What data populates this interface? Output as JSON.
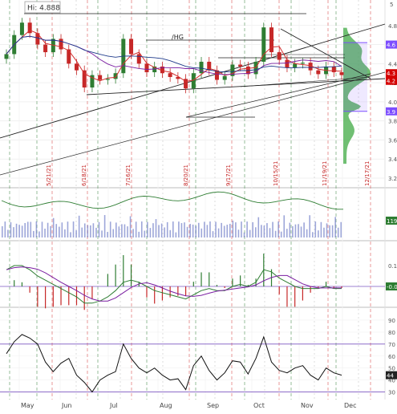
{
  "symbol_note": "/HG",
  "high_label": "Hi: 4.888",
  "colors": {
    "up": "#2e7d32",
    "down": "#c62828",
    "ma_red": "#d32f2f",
    "ma_purple": "#7b1fa2",
    "ma_blue": "#1e3a8a",
    "green_line": "#2e7d32",
    "volume_profile": "#4caf50",
    "volume_profile_highlight": "#7c4dff",
    "last_price_bg": "#d50000",
    "dashed_green": "#2e7d32",
    "dashed_red": "#d32f2f",
    "dashed_grey": "#9e9e9e",
    "hline_purple": "#7e57c2"
  },
  "price_axis": {
    "ticks": [
      "4.8",
      "4.6",
      "4.4",
      "4.2",
      "4.0",
      "3.8",
      "3.6",
      "3.4",
      "3.2"
    ],
    "top_label": "5",
    "badges": {
      "b1": "4.6",
      "b2": "4.3",
      "b3": "4.2",
      "b4": "3.9"
    }
  },
  "volume_axis": {
    "badge": "119"
  },
  "macd_axis": {
    "tick": "0.1",
    "badge": "-0.0"
  },
  "rsi_axis": {
    "ticks": [
      "90",
      "80",
      "70",
      "60",
      "50",
      "40",
      "30"
    ],
    "badge": "44",
    "levels": [
      30,
      70
    ]
  },
  "x_axis": {
    "months": [
      "May",
      "Jun",
      "Jul",
      "Aug",
      "Sep",
      "Oct",
      "Nov",
      "Dec"
    ]
  },
  "event_dates": [
    "5/21/21",
    "6/18/21",
    "7/16/21",
    "8/20/21",
    "9/17/21",
    "10/15/21",
    "11/19/21",
    "12/17/21"
  ],
  "chart_data": [
    {
      "type": "candlestick",
      "title": "",
      "ylim": [
        3.2,
        5.0
      ],
      "annotations": [
        "Hi: 4.888",
        "/HG"
      ],
      "last_price_labels": [
        4.3,
        4.2
      ],
      "close_series": [
        4.5,
        4.7,
        4.83,
        4.72,
        4.6,
        4.52,
        4.66,
        4.55,
        4.4,
        4.33,
        4.15,
        4.28,
        4.23,
        4.24,
        4.3,
        4.66,
        4.5,
        4.4,
        4.31,
        4.37,
        4.3,
        4.26,
        4.24,
        4.14,
        4.3,
        4.42,
        4.33,
        4.23,
        4.27,
        4.39,
        4.37,
        4.29,
        4.42,
        4.78,
        4.52,
        4.44,
        4.36,
        4.4,
        4.41,
        4.33,
        4.29,
        4.37,
        4.31,
        4.28
      ],
      "volume_profile_range": [
        3.35,
        4.78
      ]
    },
    {
      "type": "bar",
      "name": "volume",
      "last_value": 119
    },
    {
      "type": "line",
      "name": "MACD",
      "last_value": -0.0,
      "macd_series": [
        0.08,
        0.1,
        0.1,
        0.08,
        0.05,
        0.03,
        0.01,
        -0.01,
        -0.03,
        -0.05,
        -0.08,
        -0.08,
        -0.07,
        -0.05,
        -0.02,
        0.02,
        0.03,
        0.02,
        0.0,
        -0.02,
        -0.03,
        -0.04,
        -0.05,
        -0.06,
        -0.04,
        -0.02,
        -0.01,
        -0.02,
        -0.02,
        0.0,
        0.01,
        0.0,
        0.02,
        0.08,
        0.07,
        0.04,
        0.02,
        0.0,
        -0.01,
        -0.01,
        -0.01,
        0.0,
        -0.01,
        -0.01
      ]
    },
    {
      "type": "line",
      "name": "RSI",
      "ylim": [
        25,
        92
      ],
      "levels": [
        30,
        70
      ],
      "last_value": 44,
      "rsi_series": [
        62,
        72,
        78,
        75,
        70,
        55,
        47,
        54,
        58,
        44,
        38,
        30,
        40,
        44,
        47,
        70,
        58,
        50,
        46,
        50,
        44,
        40,
        41,
        32,
        52,
        60,
        48,
        40,
        46,
        56,
        55,
        45,
        58,
        76,
        55,
        48,
        46,
        50,
        52,
        44,
        40,
        50,
        46,
        44
      ]
    }
  ]
}
